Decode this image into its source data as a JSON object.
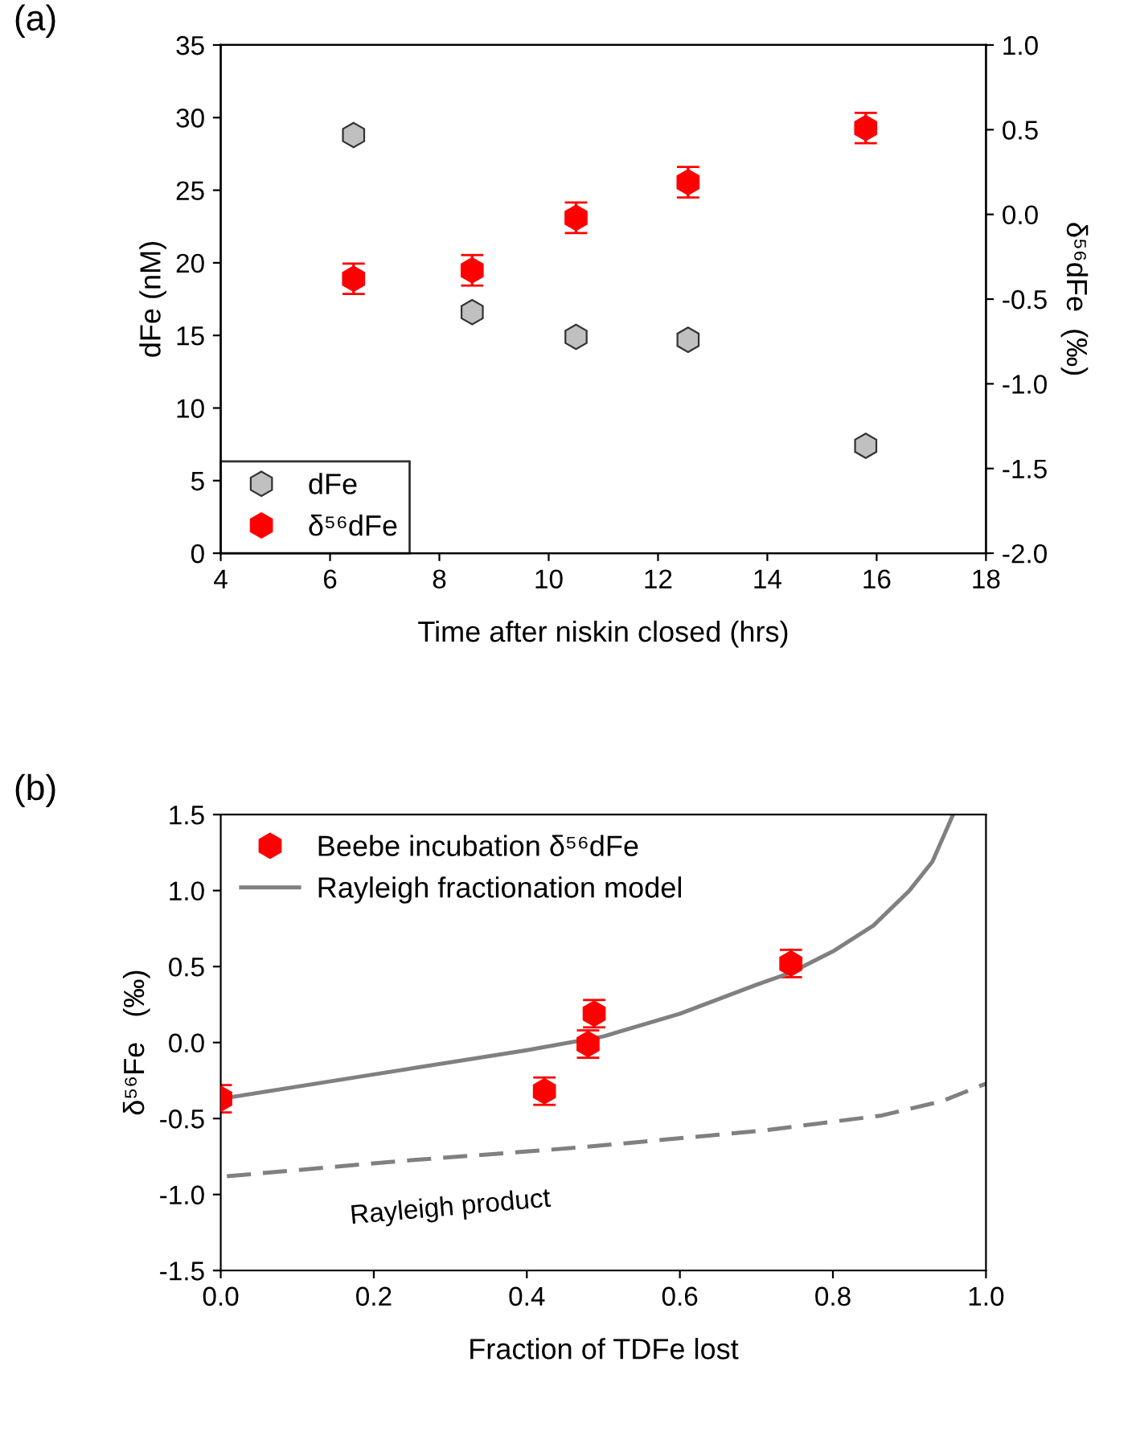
{
  "chart_data": [
    {
      "type": "scatter",
      "title": "(a)",
      "xlabel": "Time after niskin closed (hrs)",
      "ylabel": "dFe (nM)",
      "y2label": "δ⁵⁶dFe  (‰)",
      "xlim": [
        4,
        18
      ],
      "xticks": [
        4,
        6,
        8,
        10,
        12,
        14,
        16,
        18
      ],
      "ylim": [
        0,
        35
      ],
      "yticks": [
        0,
        5,
        10,
        15,
        20,
        25,
        30,
        35
      ],
      "y2lim": [
        -2.0,
        1.0
      ],
      "y2ticks": [
        {
          "value": -2,
          "label": "-2.0"
        },
        {
          "value": -1.5,
          "label": "-1.5"
        },
        {
          "value": -1,
          "label": "-1.0"
        },
        {
          "value": -0.5,
          "label": "-0.5"
        },
        {
          "value": 0,
          "label": "0.0"
        },
        {
          "value": 0.5,
          "label": "0.5"
        },
        {
          "value": 1,
          "label": "1.0"
        }
      ],
      "legend": "bottom left",
      "grid": false,
      "series": [
        {
          "name": "dFe",
          "color": "#c0c0c0",
          "x": [
            6.43,
            8.6,
            10.5,
            12.55,
            15.8
          ],
          "values": [
            28.8,
            16.6,
            14.9,
            14.7,
            7.4
          ]
        },
        {
          "name": "δ⁵⁶dFe",
          "color": "#ff0000",
          "axis": "y2",
          "x": [
            6.43,
            8.6,
            10.5,
            12.55,
            15.8
          ],
          "values": [
            -0.38,
            -0.33,
            -0.02,
            0.19,
            0.51
          ],
          "errors": [
            0.09,
            0.09,
            0.09,
            0.09,
            0.09
          ]
        }
      ]
    },
    {
      "type": "scatter",
      "title": "(b)",
      "xlabel": "Fraction of TDFe lost",
      "ylabel": "δ⁵⁶Fe   (‰)",
      "xlim": [
        0,
        1.0
      ],
      "xticks": [
        {
          "value": 0,
          "label": "0.0"
        },
        {
          "value": 0.2,
          "label": "0.2"
        },
        {
          "value": 0.4,
          "label": "0.4"
        },
        {
          "value": 0.6,
          "label": "0.6"
        },
        {
          "value": 0.8,
          "label": "0.8"
        },
        {
          "value": 1,
          "label": "1.0"
        }
      ],
      "ylim": [
        -1.5,
        1.5
      ],
      "yticks": [
        {
          "value": -1.5,
          "label": "-1.5"
        },
        {
          "value": -1,
          "label": "-1.0"
        },
        {
          "value": -0.5,
          "label": "-0.5"
        },
        {
          "value": 0,
          "label": "0.0"
        },
        {
          "value": 0.5,
          "label": "0.5"
        },
        {
          "value": 1,
          "label": "1.0"
        },
        {
          "value": 1.5,
          "label": "1.5"
        }
      ],
      "legend": "top left",
      "grid": false,
      "annotations": [
        "Rayleigh product"
      ],
      "series": [
        {
          "name": "Beebe incubation δ⁵⁶dFe",
          "type": "scatter",
          "color": "#ff0000",
          "x": [
            0.0,
            0.423,
            0.48,
            0.488,
            0.745
          ],
          "values": [
            -0.37,
            -0.32,
            -0.01,
            0.19,
            0.52
          ],
          "errors": [
            0.09,
            0.09,
            0.09,
            0.09,
            0.09
          ]
        },
        {
          "name": "Rayleigh fractionation model",
          "type": "line",
          "marker": "none",
          "line_style": "solid",
          "color": "#808080",
          "x": [
            0.0,
            0.2,
            0.4,
            0.5,
            0.6,
            0.7,
            0.745,
            0.8,
            0.853,
            0.9,
            0.93,
            0.957
          ],
          "values": [
            -0.37,
            -0.21,
            -0.05,
            0.04,
            0.19,
            0.38,
            0.46,
            0.6,
            0.77,
            1.0,
            1.19,
            1.5
          ]
        },
        {
          "type": "line",
          "marker": "none",
          "line_style": "dashed",
          "color": "#808080",
          "x": [
            0.008,
            0.234,
            0.47,
            0.707,
            0.864,
            0.943,
            1.0
          ],
          "values": [
            -0.88,
            -0.78,
            -0.69,
            -0.58,
            -0.48,
            -0.385,
            -0.27
          ]
        }
      ]
    }
  ]
}
